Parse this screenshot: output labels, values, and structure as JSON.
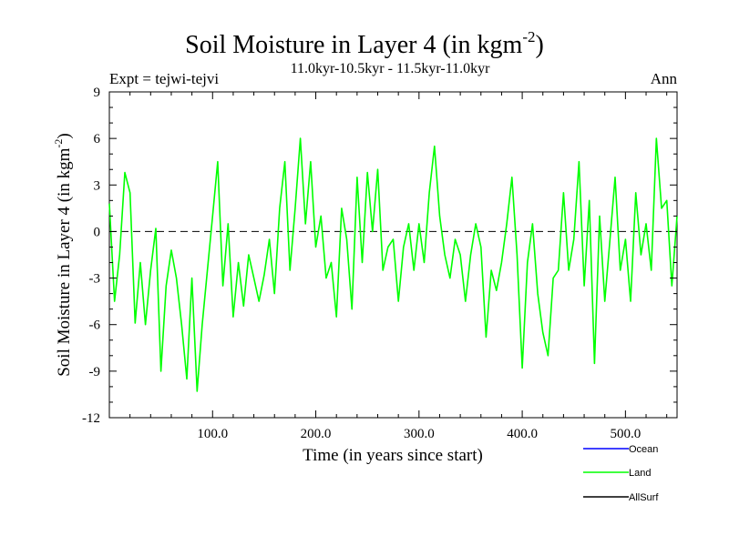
{
  "chart_data": {
    "type": "line",
    "title": "Soil Moisture in Layer 4 (in kgm",
    "title_sup": "-2",
    "title_close": ")",
    "subtitle_left": "Expt = tejwi-tejvi",
    "subtitle_center": "11.0kyr-10.5kyr - 11.5kyr-11.0kyr",
    "subtitle_right": "Ann",
    "xlabel": "Time (in years since start)",
    "ylabel": "Soil Moisture in Layer 4 (in kgm",
    "ylabel_sup": "-2",
    "ylabel_close": ")",
    "xlim": [
      0,
      550
    ],
    "ylim": [
      -12,
      9
    ],
    "xticks": [
      100,
      200,
      300,
      400,
      500
    ],
    "xtick_labels": [
      "100.0",
      "200.0",
      "300.0",
      "400.0",
      "500.0"
    ],
    "yticks": [
      9,
      6,
      3,
      0,
      -3,
      -6,
      -9,
      -12
    ],
    "ytick_labels": [
      "9",
      "6",
      "3",
      "0",
      "-3",
      "-6",
      "-9",
      "-12"
    ],
    "zero_line": true,
    "legend": [
      {
        "name": "Ocean",
        "color": "#0000ff"
      },
      {
        "name": "Land",
        "color": "#00ff00"
      },
      {
        "name": "AllSurf",
        "color": "#000000"
      }
    ],
    "series": [
      {
        "name": "Land",
        "color": "#00ff00",
        "x": [
          0,
          5,
          10,
          15,
          20,
          25,
          30,
          35,
          40,
          45,
          50,
          55,
          60,
          65,
          70,
          75,
          80,
          85,
          90,
          95,
          100,
          105,
          110,
          115,
          120,
          125,
          130,
          135,
          140,
          145,
          150,
          155,
          160,
          165,
          170,
          175,
          180,
          185,
          190,
          195,
          200,
          205,
          210,
          215,
          220,
          225,
          230,
          235,
          240,
          245,
          250,
          255,
          260,
          265,
          270,
          275,
          280,
          285,
          290,
          295,
          300,
          305,
          310,
          315,
          320,
          325,
          330,
          335,
          340,
          345,
          350,
          355,
          360,
          365,
          370,
          375,
          380,
          385,
          390,
          395,
          400,
          405,
          410,
          415,
          420,
          425,
          430,
          435,
          440,
          445,
          450,
          455,
          460,
          465,
          470,
          475,
          480,
          485,
          490,
          495,
          500,
          505,
          510,
          515,
          520,
          525,
          530,
          535,
          540,
          545,
          550
        ],
        "values": [
          1.8,
          -4.5,
          -1.5,
          3.8,
          2.5,
          -5.9,
          -2.0,
          -6.0,
          -2.5,
          0.2,
          -9.0,
          -3.5,
          -1.2,
          -3.0,
          -6.0,
          -9.5,
          -3.0,
          -10.3,
          -6.0,
          -2.5,
          1.0,
          4.5,
          -3.5,
          0.5,
          -5.5,
          -2.0,
          -4.8,
          -1.5,
          -3.0,
          -4.5,
          -2.8,
          -0.5,
          -4.0,
          1.5,
          4.5,
          -2.5,
          1.5,
          6.0,
          0.5,
          4.5,
          -1.0,
          1.0,
          -3.0,
          -2.0,
          -5.5,
          1.5,
          -0.5,
          -5.0,
          3.5,
          -2.0,
          3.8,
          0.0,
          4.0,
          -2.5,
          -1.0,
          -0.5,
          -4.5,
          -1.0,
          0.5,
          -2.5,
          0.5,
          -2.0,
          2.5,
          5.5,
          1.0,
          -1.5,
          -3.0,
          -0.5,
          -1.5,
          -4.5,
          -1.5,
          0.5,
          -1.0,
          -6.8,
          -2.5,
          -3.8,
          -2.0,
          0.5,
          3.5,
          -1.5,
          -8.8,
          -2.0,
          0.5,
          -4.0,
          -6.5,
          -8.0,
          -3.0,
          -2.5,
          2.5,
          -2.5,
          -0.5,
          4.5,
          -3.5,
          2.0,
          -8.5,
          1.0,
          -4.5,
          -0.5,
          3.5,
          -2.5,
          -0.5,
          -4.5,
          2.5,
          -1.5,
          0.5,
          -2.5,
          6.0,
          1.5,
          2.0,
          -3.5,
          1.0
        ]
      }
    ]
  }
}
